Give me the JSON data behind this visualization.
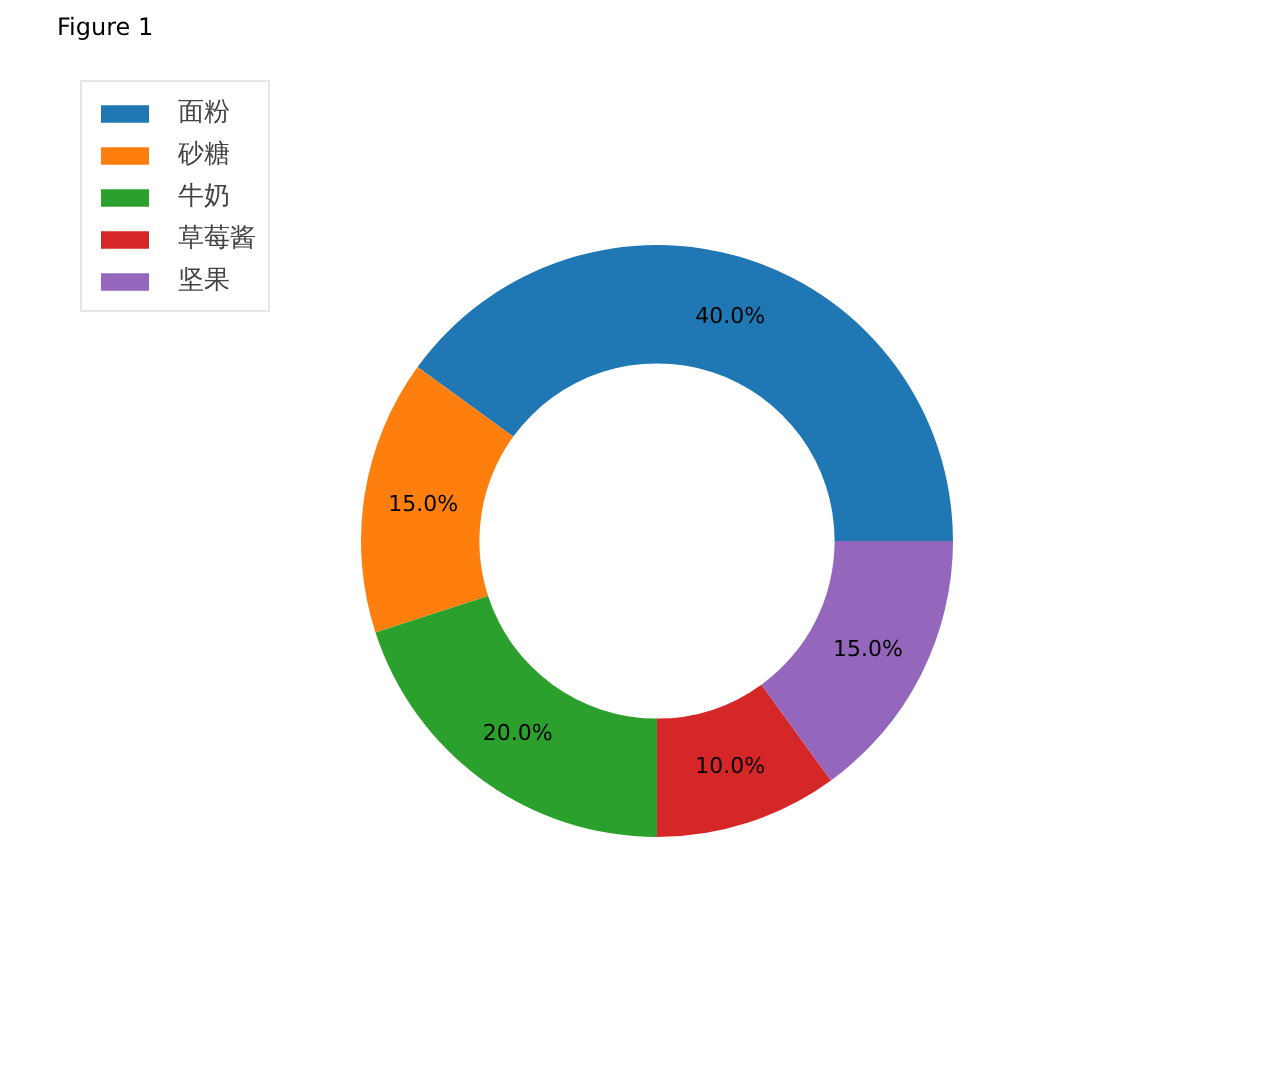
{
  "chart_data": {
    "type": "donut",
    "categories": [
      "面粉",
      "砂糖",
      "牛奶",
      "草莓酱",
      "坚果"
    ],
    "values": [
      40,
      15,
      20,
      10,
      15
    ],
    "colors": [
      "#1f77b4",
      "#ff7f0e",
      "#2ca02c",
      "#d62728",
      "#9467bd"
    ],
    "value_labels": [
      "40.0%",
      "15.0%",
      "20.0%",
      "10.0%",
      "15.0%"
    ],
    "legend": "top left",
    "annotations": [
      "Figure 1"
    ]
  }
}
